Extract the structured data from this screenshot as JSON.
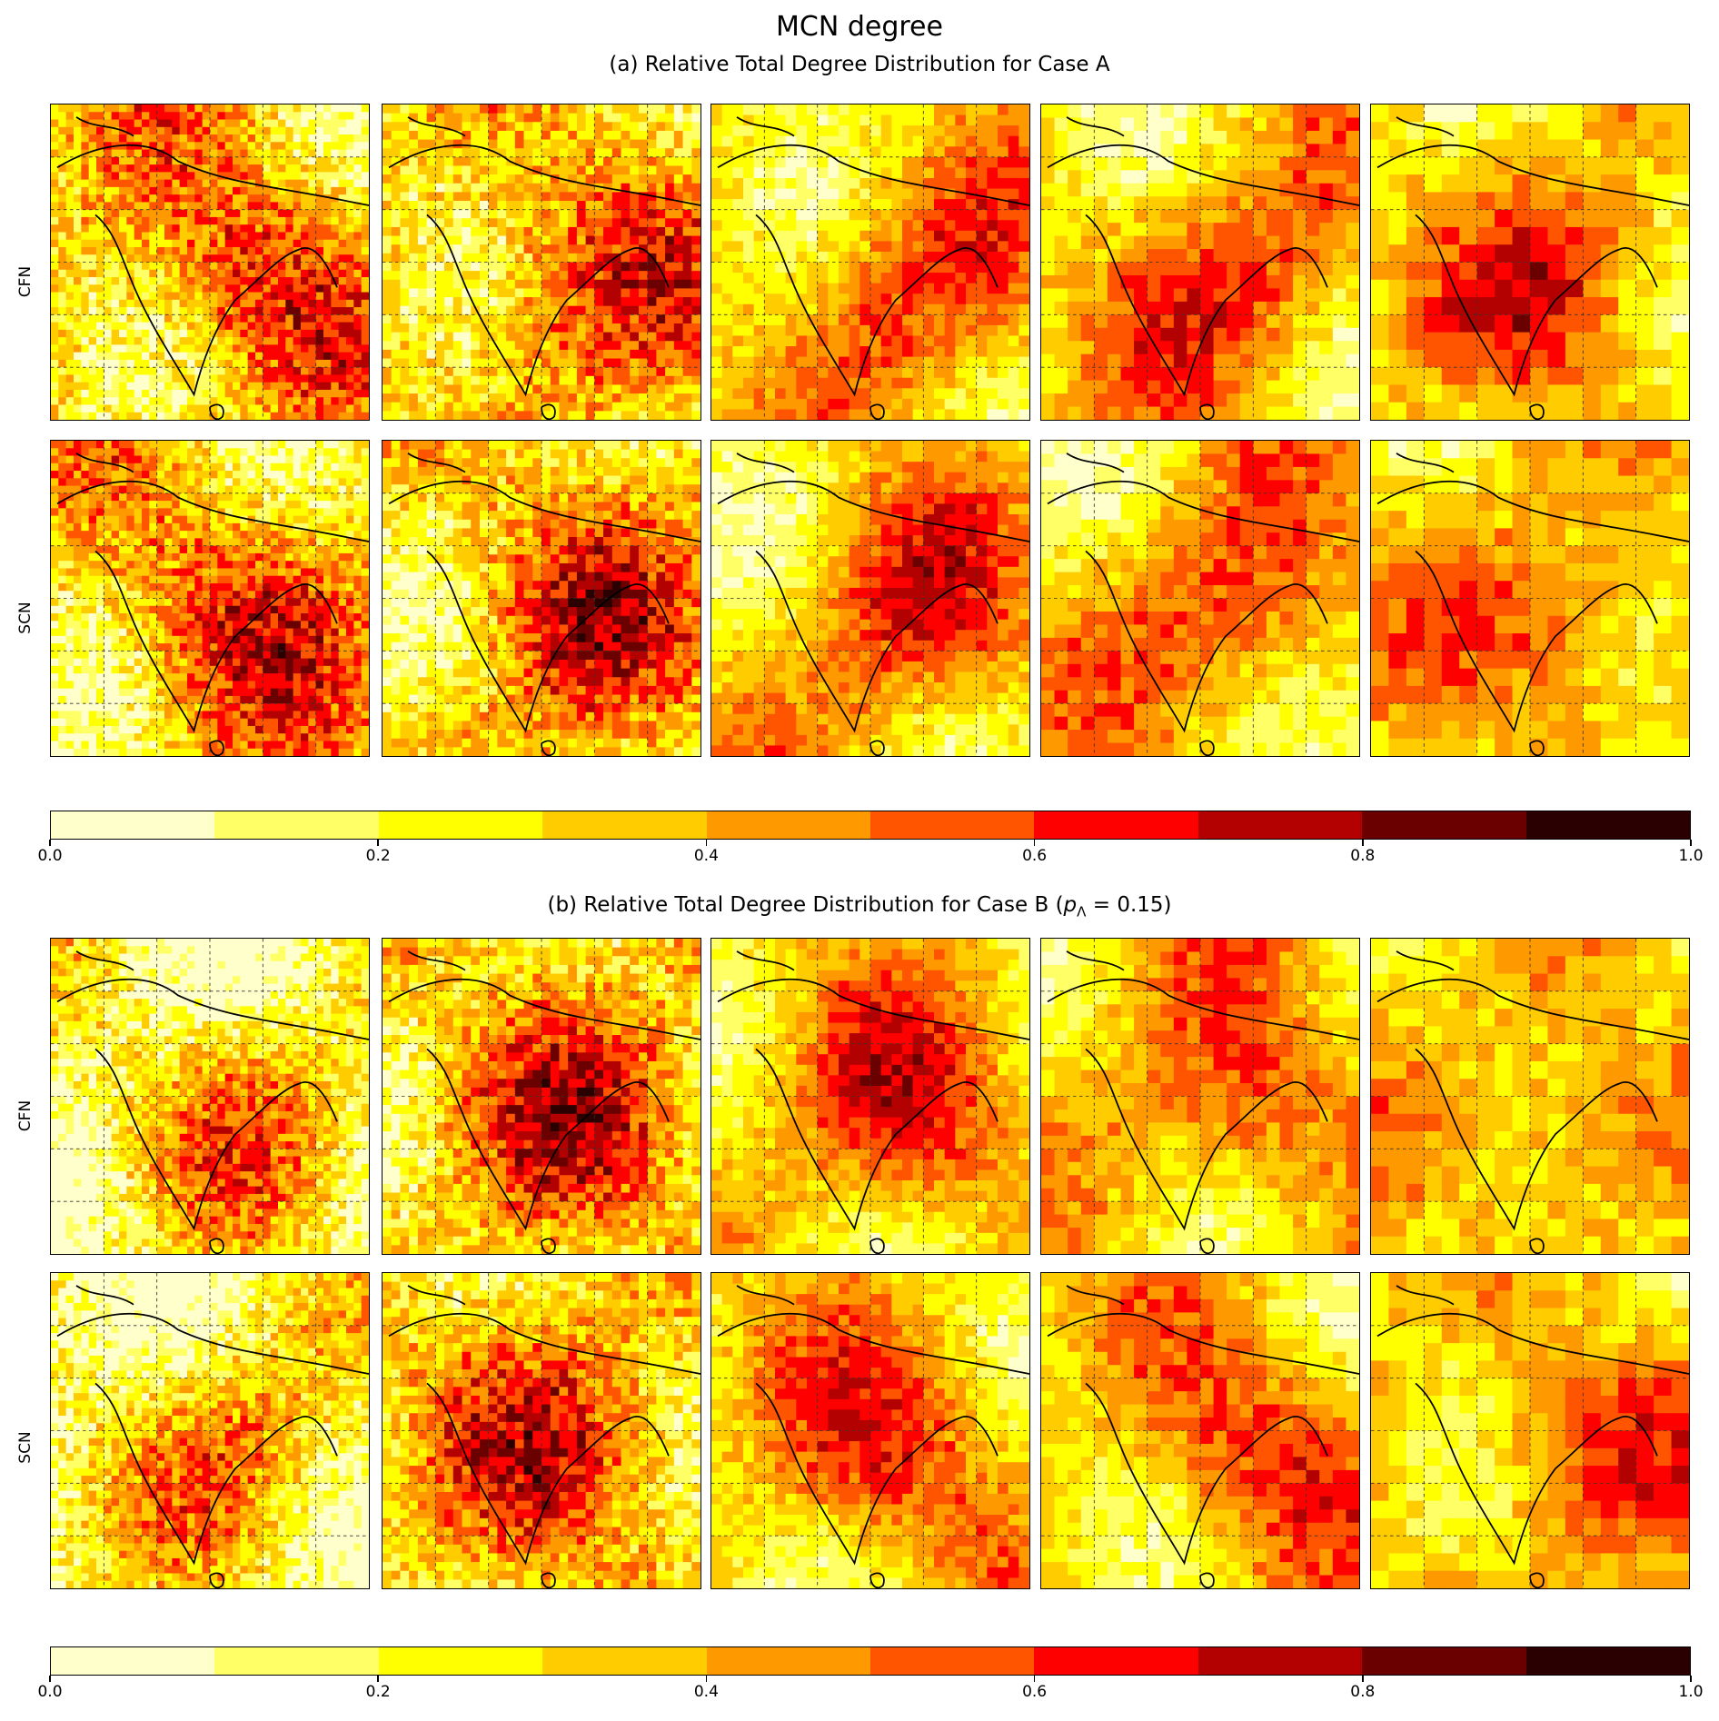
{
  "title": "MCN degree",
  "section_a": {
    "subtitle": "(a) Relative Total Degree Distribution for Case A",
    "rows": [
      "CFN",
      "SCN"
    ]
  },
  "section_b": {
    "subtitle_prefix": "(b) Relative Total Degree Distribution for Case B (",
    "subtitle_math": "p",
    "subtitle_sub": "Λ",
    "subtitle_suffix": " = 0.15)",
    "rows": [
      "CFN",
      "SCN"
    ]
  },
  "colorbar": {
    "colors": [
      "#ffffcc",
      "#ffff66",
      "#ffff00",
      "#ffcc00",
      "#ff9900",
      "#ff5500",
      "#ff0000",
      "#b30000",
      "#6b0000",
      "#2b0000"
    ],
    "ticks": [
      "0.0",
      "0.2",
      "0.4",
      "0.6",
      "0.8",
      "1.0"
    ],
    "range": [
      0.0,
      1.0
    ]
  }
}
